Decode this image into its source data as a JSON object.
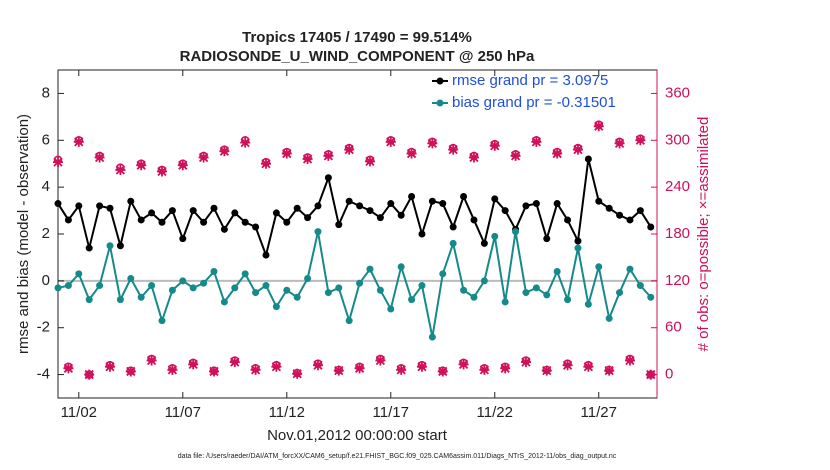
{
  "chart_data": {
    "type": "line",
    "title": [
      "Tropics 17405 / 17490 = 99.514%",
      "RADIOSONDE_U_WIND_COMPONENT @ 250 hPa"
    ],
    "xlabel": "Nov.01,2012 00:00:00 start",
    "ylabel": "rmse and bias (model - observation)",
    "y2label": "# of obs: o=possible; ×=assimilated",
    "footnote": "data file: /Users/raeder/DAI/ATM_forcXX/CAM6_setup/f.e21.FHIST_BGC.f09_025.CAM6assim.011/Diags_NTrS_2012-11/obs_diag_output.nc",
    "legend": "northeast",
    "xlim": [
      0,
      28.8
    ],
    "ylim": [
      -5,
      9
    ],
    "y2lim": [
      -30,
      390
    ],
    "xticks": [
      {
        "value": 1,
        "label": "11/02"
      },
      {
        "value": 6,
        "label": "11/07"
      },
      {
        "value": 11,
        "label": "11/12"
      },
      {
        "value": 16,
        "label": "11/17"
      },
      {
        "value": 21,
        "label": "11/22"
      },
      {
        "value": 26,
        "label": "11/27"
      }
    ],
    "yticks": [
      -4,
      -2,
      0,
      2,
      4,
      6,
      8
    ],
    "y2ticks": [
      0,
      60,
      120,
      180,
      240,
      300,
      360
    ],
    "x": [
      0,
      0.5,
      1,
      1.5,
      2,
      2.5,
      3,
      3.5,
      4,
      4.5,
      5,
      5.5,
      6,
      6.5,
      7,
      7.5,
      8,
      8.5,
      9,
      9.5,
      10,
      10.5,
      11,
      11.5,
      12,
      12.5,
      13,
      13.5,
      14,
      14.5,
      15,
      15.5,
      16,
      16.5,
      17,
      17.5,
      18,
      18.5,
      19,
      19.5,
      20,
      20.5,
      21,
      21.5,
      22,
      22.5,
      23,
      23.5,
      24,
      24.5,
      25,
      25.5,
      26,
      26.5,
      27,
      27.5,
      28,
      28.5
    ],
    "series": [
      {
        "name": "rmse grand pr = 3.0975",
        "color": "#000000",
        "marker": "dot",
        "values": [
          3.3,
          2.6,
          3.2,
          1.4,
          3.2,
          3.1,
          1.5,
          3.4,
          2.6,
          2.9,
          2.5,
          3.0,
          1.8,
          3.0,
          2.5,
          3.1,
          2.2,
          2.9,
          2.5,
          2.3,
          1.1,
          2.9,
          2.5,
          3.1,
          2.7,
          3.2,
          4.4,
          2.4,
          3.4,
          3.2,
          3.0,
          2.7,
          3.3,
          2.8,
          3.6,
          2.0,
          3.4,
          3.3,
          2.3,
          3.6,
          2.6,
          1.6,
          3.5,
          3.0,
          2.2,
          3.2,
          3.3,
          1.8,
          3.3,
          2.6,
          1.7,
          5.2,
          3.4,
          3.1,
          2.8,
          2.6,
          3.0,
          2.3
        ]
      },
      {
        "name": "bias grand pr = -0.31501",
        "color": "#168a8a",
        "marker": "dot",
        "values": [
          -0.3,
          -0.2,
          0.3,
          -0.8,
          -0.2,
          1.5,
          -0.8,
          0.1,
          -0.7,
          -0.2,
          -1.7,
          -0.4,
          0.0,
          -0.3,
          -0.1,
          0.4,
          -0.9,
          -0.3,
          0.3,
          -0.5,
          -0.2,
          -1.1,
          -0.4,
          -0.7,
          0.1,
          2.1,
          -0.5,
          -0.3,
          -1.7,
          -0.1,
          0.5,
          -0.4,
          -1.2,
          0.6,
          -0.8,
          -0.2,
          -2.4,
          0.3,
          1.6,
          -0.4,
          -0.7,
          0.0,
          1.9,
          -0.9,
          2.1,
          -0.5,
          -0.3,
          -0.6,
          0.4,
          -0.8,
          1.4,
          -1.0,
          0.6,
          -1.6,
          -0.5,
          0.5,
          -0.2,
          -0.7
        ]
      },
      {
        "color": "#d0105a",
        "marker": "o",
        "axis": "y2",
        "values": [
          275,
          10,
          300,
          0,
          280,
          12,
          265,
          5,
          270,
          20,
          262,
          8,
          270,
          15,
          280,
          5,
          288,
          18,
          300,
          8,
          272,
          12,
          285,
          2,
          278,
          14,
          282,
          6,
          290,
          10,
          275,
          20,
          300,
          8,
          285,
          12,
          298,
          5,
          290,
          15,
          280,
          8,
          295,
          10,
          282,
          18,
          300,
          6,
          285,
          14,
          290,
          12,
          320,
          6,
          298,
          20,
          302,
          0
        ]
      },
      {
        "color": "#d0105a",
        "marker": "x",
        "axis": "y2",
        "values": [
          272,
          8,
          298,
          0,
          278,
          10,
          262,
          4,
          268,
          18,
          260,
          6,
          268,
          13,
          278,
          4,
          286,
          16,
          297,
          6,
          270,
          10,
          283,
          1,
          276,
          12,
          280,
          5,
          288,
          8,
          273,
          18,
          298,
          6,
          283,
          10,
          296,
          4,
          288,
          13,
          278,
          6,
          293,
          8,
          280,
          16,
          298,
          5,
          283,
          12,
          288,
          10,
          318,
          5,
          296,
          18,
          300,
          0
        ]
      }
    ]
  }
}
